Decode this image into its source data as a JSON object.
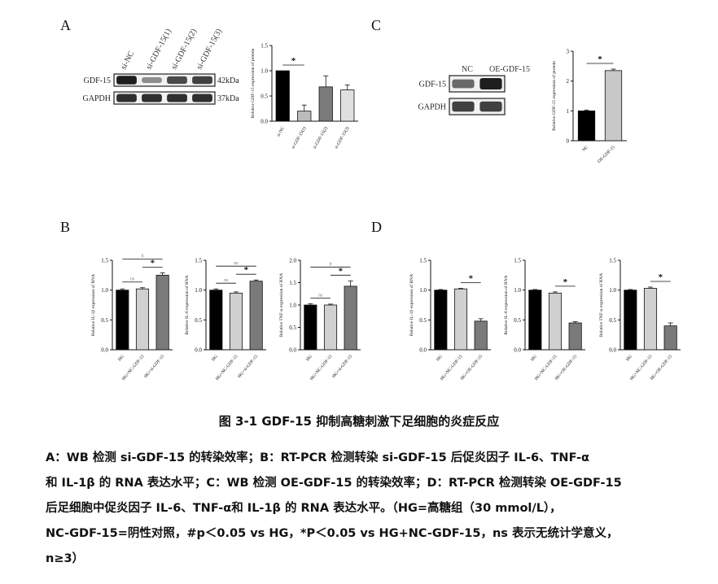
{
  "panels": {
    "a": {
      "letter": "A"
    },
    "b": {
      "letter": "B"
    },
    "c": {
      "letter": "C"
    },
    "d": {
      "letter": "D"
    }
  },
  "wb_a": {
    "lanes": [
      "si-NC",
      "si-GDF-15(1)",
      "si-GDF-15(2)",
      "si-GDF-15(3)"
    ],
    "rows": [
      {
        "label": "GDF-15",
        "size": "42kDa",
        "intensity": [
          1.0,
          0.35,
          0.75,
          0.8
        ]
      },
      {
        "label": "GAPDH",
        "size": "37kDa",
        "intensity": [
          0.9,
          0.9,
          0.9,
          0.9
        ]
      }
    ]
  },
  "wb_c": {
    "lanes": [
      "NC",
      "OE-GDF-15"
    ],
    "rows": [
      {
        "label": "GDF-15",
        "size": "",
        "intensity": [
          0.55,
          1.0
        ]
      },
      {
        "label": "GAPDH",
        "size": "",
        "intensity": [
          0.8,
          0.8
        ]
      }
    ]
  },
  "chart_data": [
    {
      "id": "A",
      "type": "bar",
      "categories": [
        "si-NC",
        "si-GDF-15(1)",
        "si-GDF-15(2)",
        "si-GDF-15(3)"
      ],
      "values": [
        1.0,
        0.2,
        0.68,
        0.62
      ],
      "errors": [
        0,
        0.12,
        0.22,
        0.1
      ],
      "colors": [
        "#000000",
        "#bbbbbb",
        "#7a7a7a",
        "#e0e0e0"
      ],
      "ylabel": "Relative GDF-15 expression of protein",
      "ylim": [
        0,
        1.5
      ],
      "yticks": [
        "0.0",
        "0.5",
        "1.0",
        "1.5"
      ],
      "annotations": [
        {
          "label": "*",
          "from": 0,
          "to": 1
        }
      ]
    },
    {
      "id": "C",
      "type": "bar",
      "categories": [
        "NC",
        "OE-GDF-15"
      ],
      "values": [
        1.0,
        2.35
      ],
      "errors": [
        0.03,
        0.05
      ],
      "colors": [
        "#000000",
        "#c8c8c8"
      ],
      "ylabel": "Relative GDF-15 expression of protein",
      "ylim": [
        0,
        3
      ],
      "yticks": [
        "0",
        "1",
        "2",
        "3"
      ],
      "annotations": [
        {
          "label": "*",
          "from": 0,
          "to": 1
        }
      ]
    },
    {
      "id": "B1",
      "type": "bar",
      "categories": [
        "HG",
        "HG+NC-GDF-15",
        "HG+si-GDF-15"
      ],
      "values": [
        1.0,
        1.02,
        1.25
      ],
      "errors": [
        0.02,
        0.02,
        0.04
      ],
      "colors": [
        "#000000",
        "#d0d0d0",
        "#7a7a7a"
      ],
      "ylabel": "Relative IL-1β expression of RNA",
      "ylim": [
        0,
        1.5
      ],
      "yticks": [
        "0.0",
        "0.5",
        "1.0",
        "1.5"
      ],
      "annotations": [
        {
          "label": "ns",
          "from": 0,
          "to": 1
        },
        {
          "label": "*",
          "from": 1,
          "to": 2
        },
        {
          "label": "#",
          "from": 0,
          "to": 2
        }
      ]
    },
    {
      "id": "B2",
      "type": "bar",
      "categories": [
        "HG",
        "HG+NC-GDF-15",
        "HG+si-GDF-15"
      ],
      "values": [
        1.0,
        0.95,
        1.15
      ],
      "errors": [
        0.02,
        0.02,
        0.02
      ],
      "colors": [
        "#000000",
        "#d0d0d0",
        "#7a7a7a"
      ],
      "ylabel": "Relative IL-6 expression of RNA",
      "ylim": [
        0,
        1.5
      ],
      "yticks": [
        "0.0",
        "0.5",
        "1.0",
        "1.5"
      ],
      "annotations": [
        {
          "label": "ns",
          "from": 0,
          "to": 1
        },
        {
          "label": "*",
          "from": 1,
          "to": 2
        },
        {
          "label": "ns",
          "from": 0,
          "to": 2
        }
      ]
    },
    {
      "id": "B3",
      "type": "bar",
      "categories": [
        "HG",
        "HG+NC-GDF-15",
        "HG+si-GDF-15"
      ],
      "values": [
        1.0,
        1.0,
        1.42
      ],
      "errors": [
        0.03,
        0.02,
        0.12
      ],
      "colors": [
        "#000000",
        "#d0d0d0",
        "#7a7a7a"
      ],
      "ylabel": "Relative TNF-α expression of RNA",
      "ylim": [
        0,
        2.0
      ],
      "yticks": [
        "0.0",
        "0.5",
        "1.0",
        "1.5",
        "2.0"
      ],
      "annotations": [
        {
          "label": "ns",
          "from": 0,
          "to": 1
        },
        {
          "label": "*",
          "from": 1,
          "to": 2
        },
        {
          "label": "#",
          "from": 0,
          "to": 2
        }
      ]
    },
    {
      "id": "D1",
      "type": "bar",
      "categories": [
        "HG",
        "HG+NC-GDF-15",
        "HG+OE-GDF-15"
      ],
      "values": [
        1.0,
        1.02,
        0.48
      ],
      "errors": [
        0.01,
        0.01,
        0.04
      ],
      "colors": [
        "#000000",
        "#d0d0d0",
        "#7a7a7a"
      ],
      "ylabel": "Relative IL-1β expression of RNA",
      "ylim": [
        0,
        1.5
      ],
      "yticks": [
        "0.0",
        "0.5",
        "1.0",
        "1.5"
      ],
      "annotations": [
        {
          "label": "*",
          "from": 1,
          "to": 2
        }
      ]
    },
    {
      "id": "D2",
      "type": "bar",
      "categories": [
        "HG",
        "HG+NC-GDF-15",
        "HG+OE-GDF-15"
      ],
      "values": [
        1.0,
        0.95,
        0.45
      ],
      "errors": [
        0.01,
        0.02,
        0.02
      ],
      "colors": [
        "#000000",
        "#d0d0d0",
        "#7a7a7a"
      ],
      "ylabel": "Relative IL-6 expression of RNA",
      "ylim": [
        0,
        1.5
      ],
      "yticks": [
        "0.0",
        "0.5",
        "1.0",
        "1.5"
      ],
      "annotations": [
        {
          "label": "*",
          "from": 1,
          "to": 2
        }
      ]
    },
    {
      "id": "D3",
      "type": "bar",
      "categories": [
        "HG",
        "HG+NC-GDF-15",
        "HG+OE-GDF-15"
      ],
      "values": [
        1.0,
        1.03,
        0.4
      ],
      "errors": [
        0.01,
        0.02,
        0.05
      ],
      "colors": [
        "#000000",
        "#d0d0d0",
        "#7a7a7a"
      ],
      "ylabel": "Relative TNF-α expression of RNA",
      "ylim": [
        0,
        1.5
      ],
      "yticks": [
        "0.0",
        "0.5",
        "1.0",
        "1.5"
      ],
      "annotations": [
        {
          "label": "*",
          "from": 1,
          "to": 2
        }
      ]
    }
  ],
  "caption": "图 3-1 GDF-15 抑制高糖刺激下足细胞的炎症反应",
  "legend_lines": [
    "A：WB 检测 si-GDF-15 的转染效率；B：RT-PCR 检测转染 si-GDF-15 后促炎因子 IL-6、TNF-α",
    "和 IL-1β 的 RNA 表达水平；C：WB 检测 OE-GDF-15 的转染效率；D：RT-PCR 检测转染 OE-GDF-15",
    "后足细胞中促炎因子 IL-6、TNF-α和 IL-1β 的 RNA 表达水平。（HG=高糖组（30 mmol/L），",
    "NC-GDF-15=阴性对照，#p＜0.05 vs HG，*P＜0.05 vs HG+NC-GDF-15，ns 表示无统计学意义，",
    "n≥3）"
  ]
}
